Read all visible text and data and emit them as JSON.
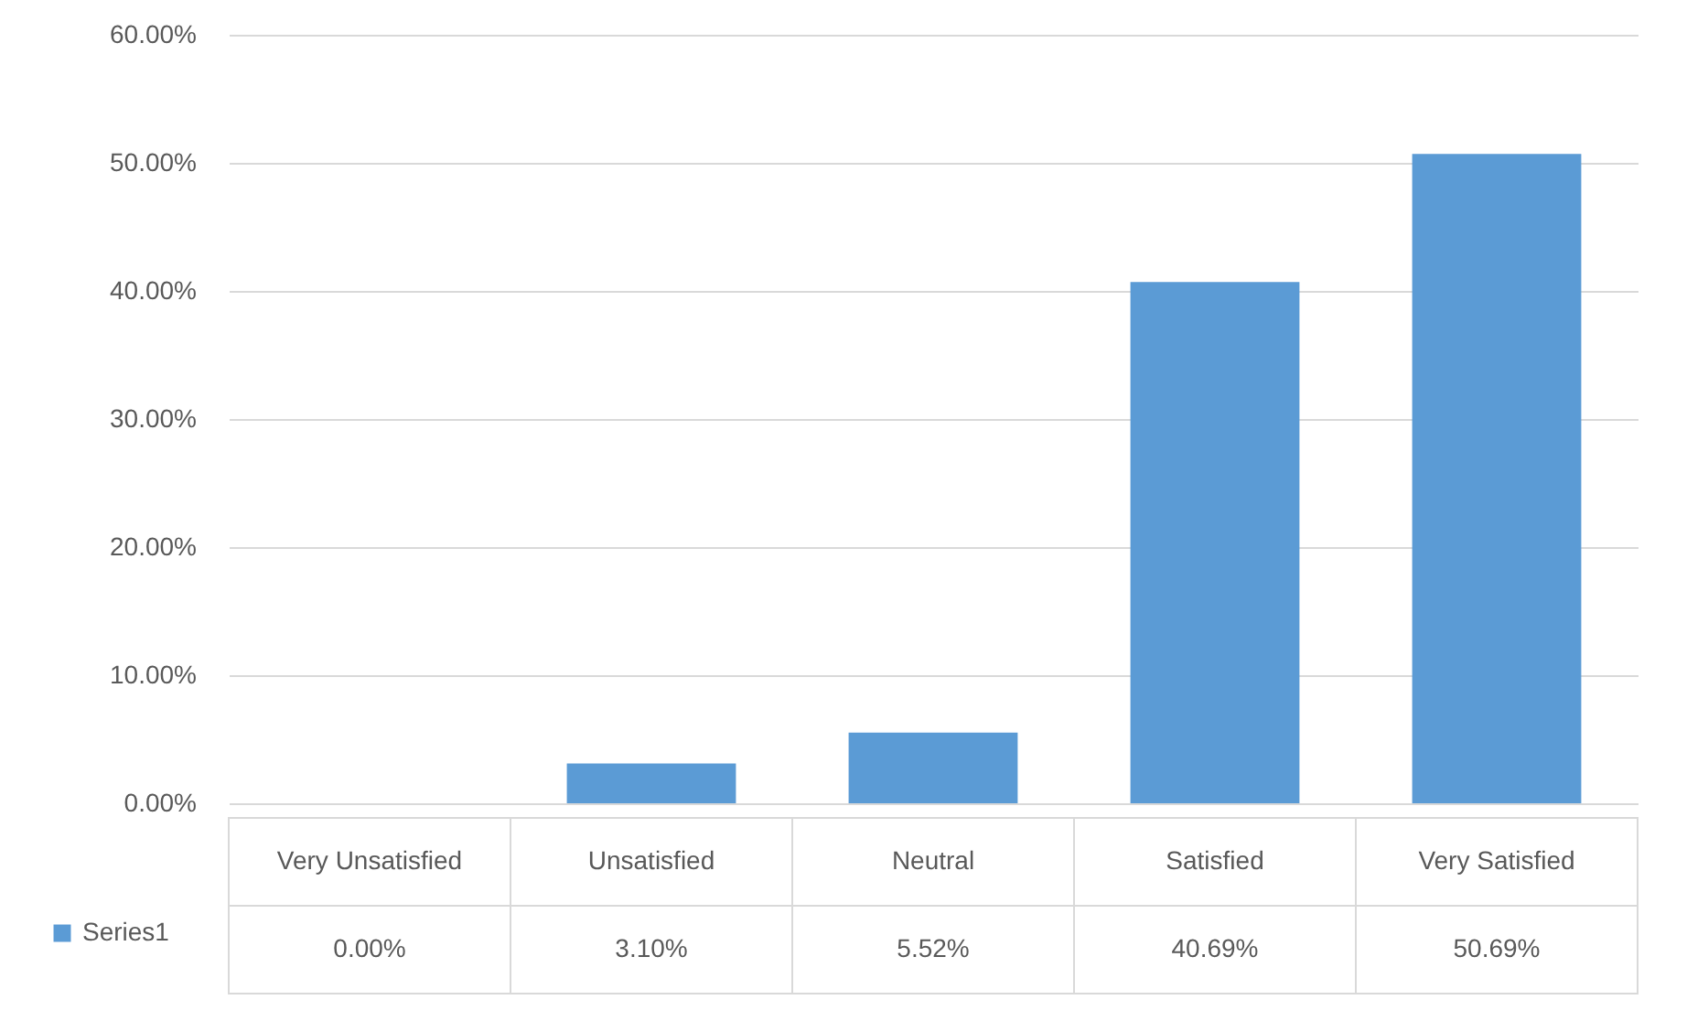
{
  "chart_data": {
    "type": "bar",
    "categories": [
      "Very Unsatisfied",
      "Unsatisfied",
      "Neutral",
      "Satisfied",
      "Very Satisfied"
    ],
    "series": [
      {
        "name": "Series1",
        "color": "#5b9bd5",
        "values": [
          0,
          3.1,
          5.52,
          40.69,
          50.69
        ],
        "value_labels": [
          "0.00%",
          "3.10%",
          "5.52%",
          "40.69%",
          "50.69%"
        ]
      }
    ],
    "ylim": [
      0,
      60
    ],
    "yticks": [
      {
        "value": 0,
        "label": "0.00%"
      },
      {
        "value": 10,
        "label": "10.00%"
      },
      {
        "value": 20,
        "label": "20.00%"
      },
      {
        "value": 30,
        "label": "30.00%"
      },
      {
        "value": 40,
        "label": "40.00%"
      },
      {
        "value": 50,
        "label": "50.00%"
      },
      {
        "value": 60,
        "label": "60.00%"
      }
    ],
    "grid": "y",
    "legend": "bottom left"
  }
}
